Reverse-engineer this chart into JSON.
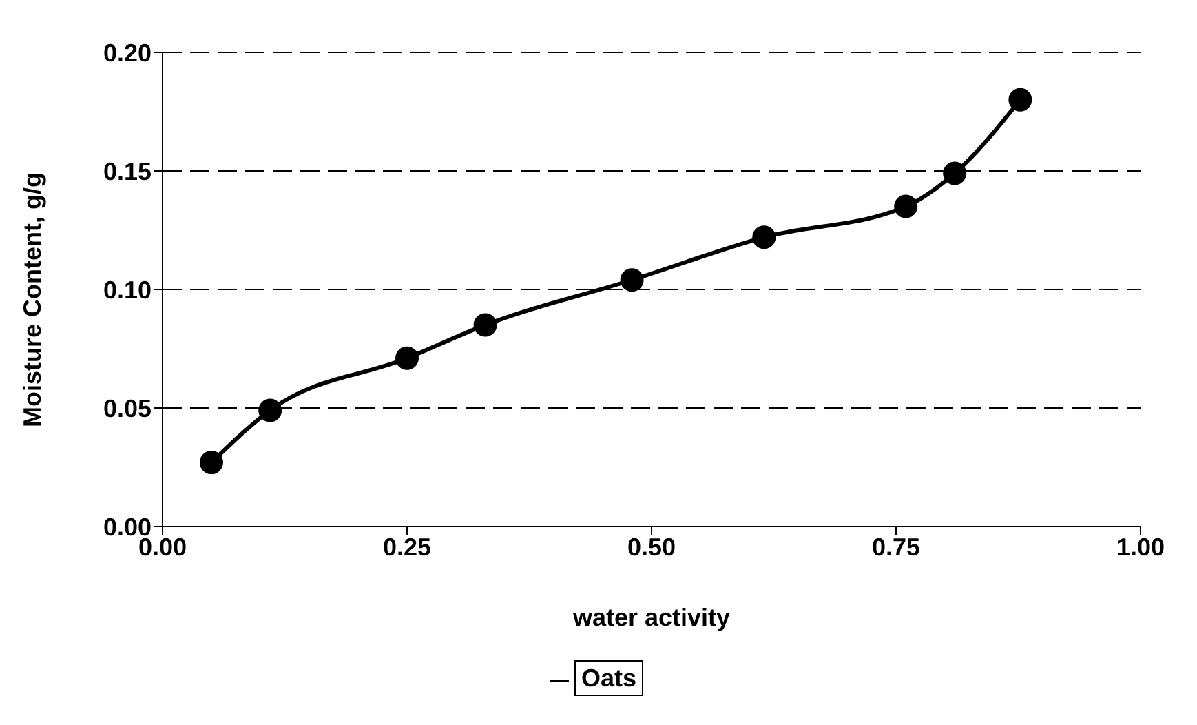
{
  "chart_data": {
    "type": "line",
    "xlabel": "water activity",
    "ylabel": "Moisture Content, g/g",
    "x": [
      0.05,
      0.11,
      0.25,
      0.33,
      0.48,
      0.615,
      0.76,
      0.81,
      0.877
    ],
    "series": [
      {
        "name": "Oats",
        "color": "#000000",
        "values": [
          0.027,
          0.049,
          0.071,
          0.085,
          0.104,
          0.122,
          0.135,
          0.149,
          0.18
        ]
      }
    ],
    "xlim": [
      0,
      1
    ],
    "xticks": [
      {
        "value": 0,
        "label": "0.00"
      },
      {
        "value": 0.25,
        "label": "0.25"
      },
      {
        "value": 0.5,
        "label": "0.50"
      },
      {
        "value": 0.75,
        "label": "0.75"
      },
      {
        "value": 1,
        "label": "1.00"
      }
    ],
    "ylim": [
      0,
      0.2
    ],
    "yticks": [
      {
        "value": 0,
        "label": "0.00"
      },
      {
        "value": 0.05,
        "label": "0.05"
      },
      {
        "value": 0.1,
        "label": "0.10"
      },
      {
        "value": 0.15,
        "label": "0.15"
      },
      {
        "value": 0.2,
        "label": "0.20"
      }
    ],
    "grid": "y",
    "legend": "bottom",
    "marker": "circle",
    "line_style": "solid"
  }
}
